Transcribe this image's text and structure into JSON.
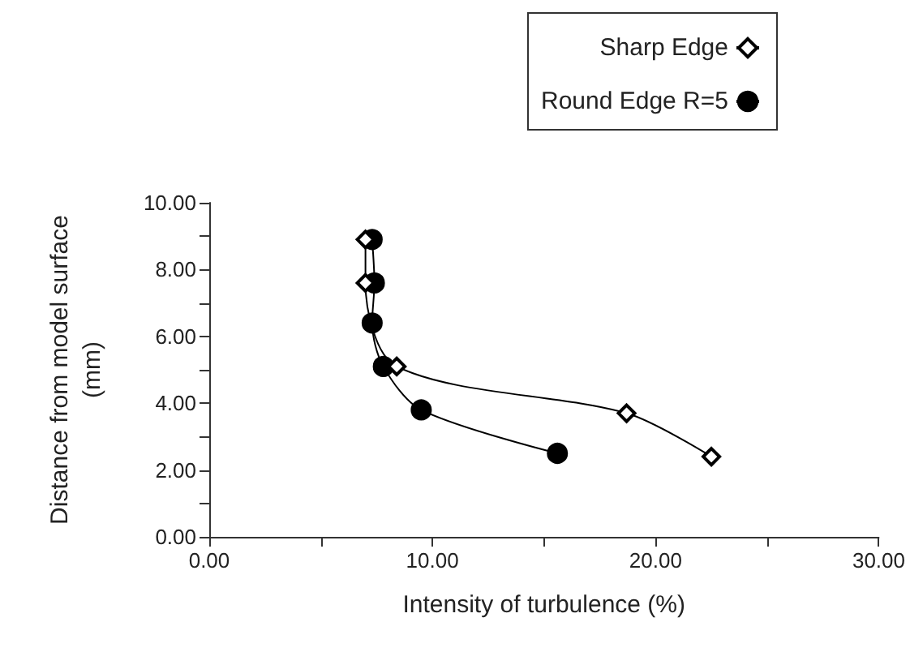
{
  "chart_data": {
    "type": "line",
    "xlabel": "Intensity of turbulence (%)",
    "ylabel": "Distance from model surface\n(mm)",
    "xlim": [
      0,
      30
    ],
    "xticks": [
      {
        "value": 0,
        "label": "0.00"
      },
      {
        "value": 5,
        "label": null
      },
      {
        "value": 10,
        "label": "10.00"
      },
      {
        "value": 15,
        "label": null
      },
      {
        "value": 20,
        "label": "20.00"
      },
      {
        "value": 25,
        "label": null
      },
      {
        "value": 30,
        "label": "30.00"
      }
    ],
    "ylim": [
      0,
      10
    ],
    "yticks": [
      {
        "value": 0,
        "label": "0.00"
      },
      {
        "value": 1,
        "label": null
      },
      {
        "value": 2,
        "label": "2.00"
      },
      {
        "value": 3,
        "label": null
      },
      {
        "value": 4,
        "label": "4.00"
      },
      {
        "value": 5,
        "label": null
      },
      {
        "value": 6,
        "label": "6.00"
      },
      {
        "value": 7,
        "label": null
      },
      {
        "value": 8,
        "label": "8.00"
      },
      {
        "value": 9,
        "label": null
      },
      {
        "value": 10,
        "label": "10.00"
      }
    ],
    "grid": false,
    "legend": "top right",
    "series": [
      {
        "name": "Sharp Edge",
        "color": "#000000",
        "marker": "diamond",
        "x": [
          7.0,
          7.0,
          8.4,
          18.7,
          22.5
        ],
        "values": [
          8.9,
          7.6,
          5.1,
          3.7,
          2.4
        ]
      },
      {
        "name": "Round Edge R=5",
        "color": "#000000",
        "marker": "circle",
        "x": [
          7.3,
          7.4,
          7.3,
          7.8,
          9.5,
          15.6
        ],
        "values": [
          8.9,
          7.6,
          6.4,
          5.1,
          3.8,
          2.5
        ]
      }
    ]
  }
}
